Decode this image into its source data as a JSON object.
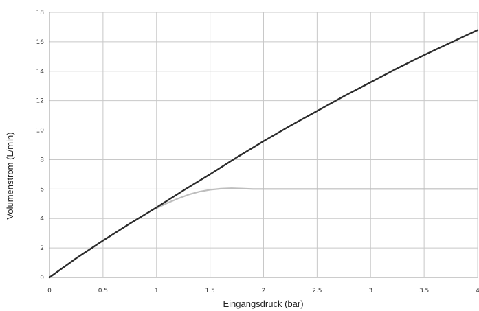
{
  "chart_data": {
    "type": "line",
    "title": "",
    "xlabel": "Eingangsdruck (bar)",
    "ylabel": "Volumenstrom (L/min)",
    "xlim": [
      0,
      4
    ],
    "ylim": [
      0,
      18
    ],
    "x_ticks": [
      0,
      0.5,
      1,
      1.5,
      2,
      2.5,
      3,
      3.5,
      4
    ],
    "x_tick_labels": [
      "0",
      "0.5",
      "1",
      "1.5",
      "2",
      "2.5",
      "3",
      "3.5",
      "4"
    ],
    "y_ticks": [
      0,
      2,
      4,
      6,
      8,
      10,
      12,
      14,
      16,
      18
    ],
    "y_tick_labels": [
      "0",
      "2",
      "4",
      "6",
      "8",
      "10",
      "12",
      "14",
      "16",
      "18"
    ],
    "grid": true,
    "legend": "none",
    "series": [
      {
        "color": "#2b2b2b",
        "x": [
          0,
          0.25,
          0.5,
          0.75,
          1,
          1.25,
          1.5,
          1.75,
          2,
          2.25,
          2.5,
          2.75,
          3,
          3.25,
          3.5,
          3.75,
          4
        ],
        "y": [
          0,
          1.3,
          2.5,
          3.65,
          4.75,
          5.9,
          7.0,
          8.15,
          9.25,
          10.3,
          11.3,
          12.3,
          13.25,
          14.2,
          15.1,
          15.95,
          16.8
        ]
      },
      {
        "color": "#bdbdbd",
        "x": [
          1,
          1.1,
          1.2,
          1.3,
          1.4,
          1.5,
          1.6,
          1.7,
          1.8,
          1.9,
          2,
          2.5,
          3,
          3.5,
          4
        ],
        "y": [
          4.7,
          5.05,
          5.35,
          5.62,
          5.82,
          5.95,
          6.02,
          6.05,
          6.03,
          6.0,
          6.0,
          6.0,
          6.0,
          6.0,
          6.0
        ]
      }
    ]
  }
}
